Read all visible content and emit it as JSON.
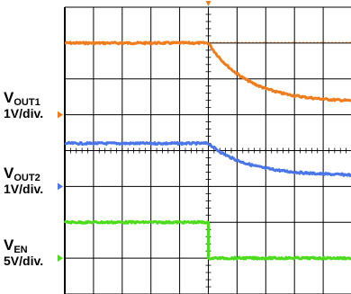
{
  "chart_data": {
    "type": "line",
    "x_div_count": 10,
    "y_div_count": 8,
    "trigger_div": 5,
    "grid": true,
    "series": [
      {
        "name": "VOUT1",
        "name_main": "V",
        "name_sub": "OUT1",
        "scale": "1V/div.",
        "color": "#ef7d1d",
        "ground_div": 3.0,
        "before_div": 2.0,
        "after_final_div": 0.35,
        "decay": 3.0
      },
      {
        "name": "VOUT2",
        "name_main": "V",
        "name_sub": "OUT2",
        "scale": "1V/div.",
        "color": "#4a76e8",
        "ground_div": 5.0,
        "before_div": 1.2,
        "after_final_div": 0.3,
        "decay": 3.0
      },
      {
        "name": "VEN",
        "name_main": "V",
        "name_sub": "EN",
        "scale": "5V/div.",
        "color": "#4ddc1d",
        "ground_div": 7.0,
        "before_div": 1.0,
        "after_final_div": 0.0,
        "decay": 0
      }
    ]
  }
}
